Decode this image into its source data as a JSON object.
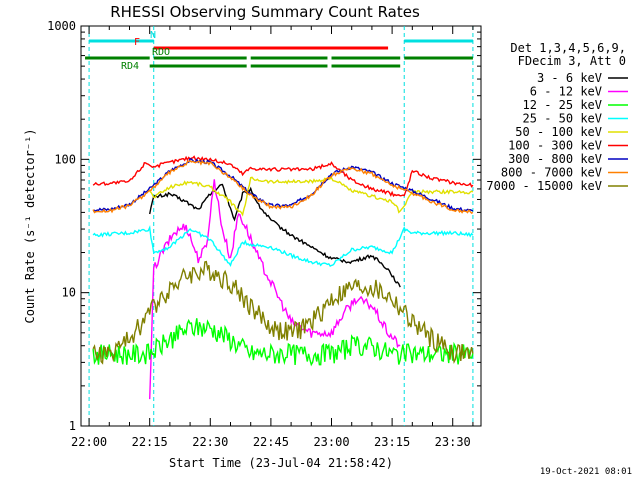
{
  "chart_data": {
    "type": "line",
    "title": "RHESSI Observing Summary Count Rates",
    "xlabel": "Start Time (23-Jul-04 21:58:42)",
    "ylabel": "Count Rate (s⁻¹ detector⁻¹)",
    "footer_date": "19-Oct-2021 08:01",
    "yscale": "log",
    "ylim": [
      1,
      1000
    ],
    "xlim_minutes": [
      -2,
      97
    ],
    "x_tick_labels": [
      "22:00",
      "22:15",
      "22:30",
      "22:45",
      "23:00",
      "23:15",
      "23:30"
    ],
    "x_tick_minutes": [
      0,
      15,
      30,
      45,
      60,
      75,
      90
    ],
    "y_tick_labels": [
      "1",
      "10",
      "100",
      "1000"
    ],
    "y_tick_values": [
      1,
      10,
      100,
      1000
    ],
    "legend_header": [
      "Det 1,3,4,5,6,9,",
      "FDecim 3, Att 0"
    ],
    "flags": [
      {
        "label": "N",
        "color": "#00e0e0",
        "segments": [
          [
            0,
            16
          ],
          [
            78,
            95
          ]
        ]
      },
      {
        "label": "F",
        "color": "#ff0000",
        "segments": [
          [
            16,
            74
          ]
        ]
      },
      {
        "label": "RDO",
        "color": "#008000",
        "segments": [
          [
            -1,
            15
          ],
          [
            16,
            39
          ],
          [
            40,
            59
          ],
          [
            60,
            77
          ],
          [
            78,
            95
          ]
        ]
      },
      {
        "label": "RD4",
        "color": "#008000",
        "segments": [
          [
            15,
            39
          ],
          [
            40,
            59
          ],
          [
            60,
            77
          ]
        ]
      }
    ],
    "night_boundaries_minutes": [
      0,
      16,
      78,
      95
    ],
    "series": [
      {
        "name": "3 - 6 keV",
        "color": "#000000",
        "x": [
          15,
          16,
          20,
          24,
          27,
          30,
          33,
          36,
          38,
          40,
          42,
          45,
          50,
          55,
          60,
          65,
          70,
          74,
          77
        ],
        "y": [
          40,
          52,
          55,
          48,
          42,
          55,
          65,
          35,
          55,
          60,
          45,
          35,
          27,
          22,
          18,
          17,
          19,
          15,
          11
        ]
      },
      {
        "name": "6 - 12 keV",
        "color": "#ff00ff",
        "x": [
          15,
          16,
          18,
          21,
          24,
          27,
          29,
          31,
          33,
          35,
          37,
          39,
          42,
          45,
          50,
          55,
          60,
          63,
          66,
          70,
          74,
          77
        ],
        "y": [
          1.5,
          15,
          20,
          28,
          32,
          18,
          22,
          70,
          30,
          18,
          40,
          30,
          18,
          12,
          6,
          5,
          5,
          7,
          9,
          8,
          5,
          4
        ]
      },
      {
        "name": "12 - 25 keV",
        "color": "#00ff00",
        "x": [
          1,
          5,
          10,
          15,
          20,
          25,
          30,
          35,
          40,
          45,
          50,
          55,
          60,
          65,
          70,
          75,
          80,
          85,
          90,
          95
        ],
        "y": [
          3.5,
          3.5,
          3.5,
          3.5,
          4.5,
          5.5,
          5.5,
          4.5,
          3.5,
          3.5,
          3.5,
          3.5,
          3.5,
          4,
          4,
          3.5,
          3.5,
          3.5,
          3.5,
          3.5
        ]
      },
      {
        "name": "25 - 50 keV",
        "color": "#00ffff",
        "x": [
          1,
          10,
          15,
          16,
          20,
          25,
          30,
          35,
          38,
          40,
          45,
          50,
          55,
          60,
          65,
          70,
          75,
          78,
          80,
          85,
          90,
          95
        ],
        "y": [
          27,
          28,
          30,
          20,
          22,
          30,
          25,
          16,
          24,
          23,
          22,
          19,
          17,
          16,
          21,
          22,
          20,
          30,
          28,
          28,
          28,
          27
        ]
      },
      {
        "name": "50 - 100 keV",
        "color": "#e0e000",
        "x": [
          15,
          16,
          20,
          25,
          30,
          35,
          38,
          40,
          45,
          55,
          60,
          65,
          70,
          75,
          77,
          80,
          85,
          90,
          95
        ],
        "y": [
          58,
          52,
          62,
          68,
          62,
          48,
          38,
          72,
          68,
          68,
          72,
          58,
          53,
          48,
          40,
          57,
          57,
          57,
          57
        ]
      },
      {
        "name": "100 - 300 keV",
        "color": "#ff0000",
        "x": [
          1,
          10,
          14,
          16,
          20,
          25,
          30,
          35,
          38,
          40,
          45,
          55,
          60,
          65,
          70,
          75,
          78,
          80,
          85,
          90,
          95
        ],
        "y": [
          65,
          68,
          95,
          88,
          95,
          103,
          100,
          92,
          78,
          86,
          84,
          84,
          93,
          70,
          60,
          55,
          53,
          82,
          72,
          67,
          64
        ]
      },
      {
        "name": "300 - 800 keV",
        "color": "#0000c0",
        "x": [
          1,
          5,
          10,
          15,
          20,
          25,
          30,
          35,
          40,
          45,
          50,
          55,
          60,
          65,
          70,
          75,
          80,
          85,
          90,
          95
        ],
        "y": [
          42,
          42,
          46,
          60,
          82,
          98,
          95,
          75,
          55,
          45,
          45,
          55,
          78,
          88,
          80,
          66,
          58,
          50,
          43,
          41
        ]
      },
      {
        "name": "800 - 7000 keV",
        "color": "#ff8000",
        "x": [
          1,
          5,
          10,
          15,
          20,
          25,
          30,
          35,
          40,
          45,
          50,
          55,
          60,
          65,
          70,
          75,
          80,
          85,
          90,
          95
        ],
        "y": [
          41,
          41,
          45,
          58,
          80,
          96,
          93,
          73,
          54,
          44,
          44,
          54,
          76,
          86,
          78,
          64,
          56,
          48,
          42,
          40
        ]
      },
      {
        "name": "7000 - 15000 keV",
        "color": "#808000",
        "x": [
          1,
          5,
          10,
          13,
          16,
          20,
          25,
          30,
          35,
          40,
          45,
          50,
          55,
          60,
          65,
          70,
          75,
          80,
          85,
          90,
          95
        ],
        "y": [
          3.5,
          3.5,
          4.5,
          6,
          8,
          11,
          14,
          15,
          12,
          8,
          5.5,
          5,
          6,
          9,
          11,
          11,
          9,
          6,
          4.5,
          3.6,
          3.5
        ]
      }
    ]
  }
}
